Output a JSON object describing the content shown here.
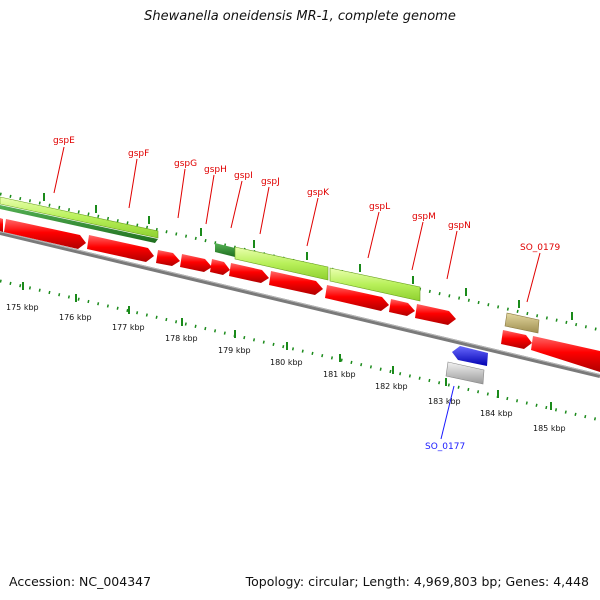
{
  "title": "Shewanella oneidensis MR-1, complete genome",
  "accession": "Accession: NC_004347",
  "summary": "Topology: circular; Length: 4,969,803 bp; Genes: 4,448",
  "genes_top": [
    {
      "label": "gspE"
    },
    {
      "label": "gspF"
    },
    {
      "label": "gspG"
    },
    {
      "label": "gspH"
    },
    {
      "label": "gspI"
    },
    {
      "label": "gspJ"
    },
    {
      "label": "gspK"
    },
    {
      "label": "gspL"
    },
    {
      "label": "gspM"
    },
    {
      "label": "gspN"
    },
    {
      "label": "SO_0179"
    }
  ],
  "genes_bottom": [
    {
      "label": "SO_0177"
    }
  ],
  "kbp_labels": [
    "175 kbp",
    "176 kbp",
    "177 kbp",
    "178 kbp",
    "179 kbp",
    "180 kbp",
    "181 kbp",
    "182 kbp",
    "183 kbp",
    "184 kbp",
    "185 kbp"
  ],
  "colors": {
    "gene_red": "#ff0000",
    "gene_red_dark": "#b00000",
    "lime": "#ccff66",
    "dark_green": "#2e8b2e",
    "tan": "#c8b878",
    "blue": "#0000ff",
    "grey": "#cfcfcf",
    "backbone": "#777777",
    "tick_green": "#1a8a1a",
    "label_red": "#e00000",
    "label_blue": "#1a1aff"
  }
}
